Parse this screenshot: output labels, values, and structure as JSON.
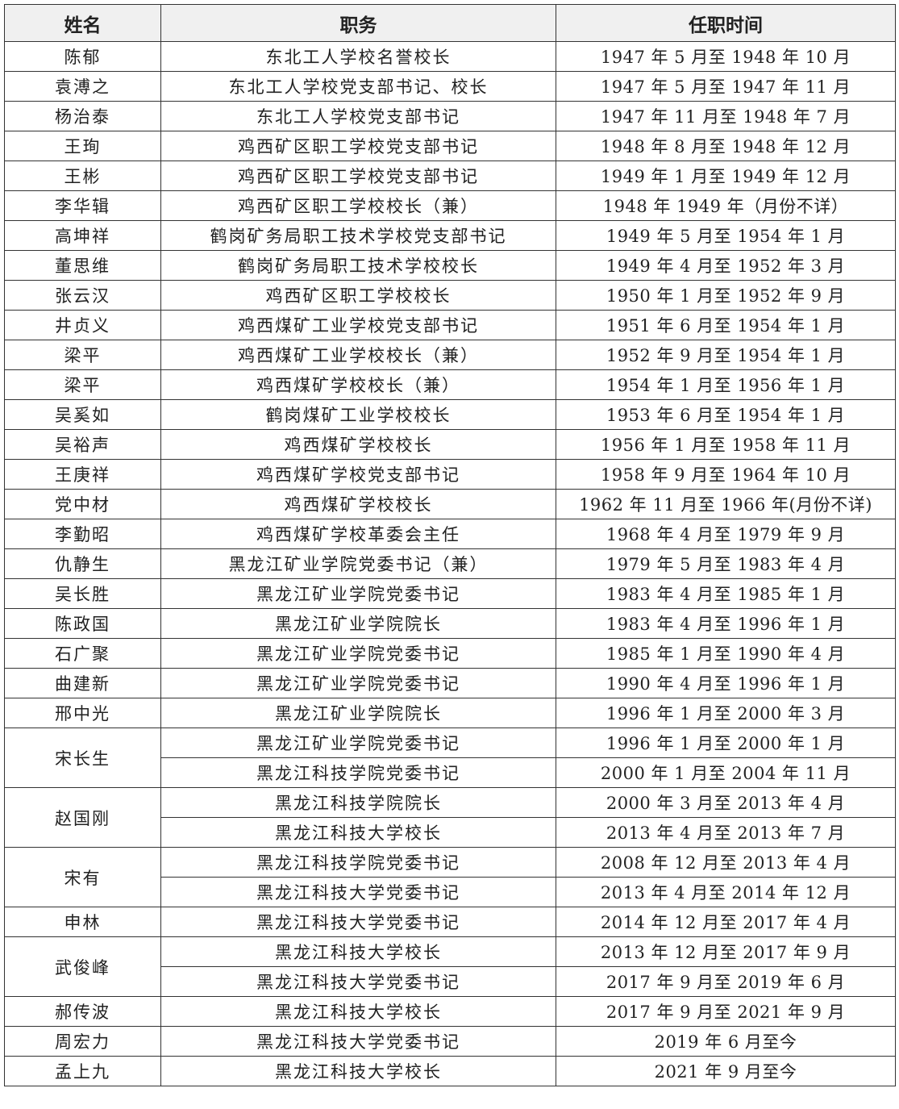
{
  "table": {
    "headers": [
      "姓名",
      "职务",
      "任职时间"
    ],
    "people": [
      {
        "name": "陈郁",
        "roles": [
          {
            "position": "东北工人学校名誉校长",
            "term": "1947 年 5 月至 1948 年 10 月"
          }
        ]
      },
      {
        "name": "袁溥之",
        "roles": [
          {
            "position": "东北工人学校党支部书记、校长",
            "term": "1947 年 5 月至 1947 年 11 月"
          }
        ]
      },
      {
        "name": "杨治泰",
        "roles": [
          {
            "position": "东北工人学校党支部书记",
            "term": "1947 年 11 月至 1948 年 7 月"
          }
        ]
      },
      {
        "name": "王珣",
        "roles": [
          {
            "position": "鸡西矿区职工学校党支部书记",
            "term": "1948 年 8 月至 1948 年 12 月"
          }
        ]
      },
      {
        "name": "王彬",
        "roles": [
          {
            "position": "鸡西矿区职工学校党支部书记",
            "term": "1949 年 1 月至 1949 年 12 月"
          }
        ]
      },
      {
        "name": "李华辑",
        "roles": [
          {
            "position": "鸡西矿区职工学校校长（兼）",
            "term": "1948 年 1949 年（月份不详）"
          }
        ]
      },
      {
        "name": "高坤祥",
        "roles": [
          {
            "position": "鹤岗矿务局职工技术学校党支部书记",
            "term": "1949 年 5 月至 1954 年 1 月"
          }
        ]
      },
      {
        "name": "董思维",
        "roles": [
          {
            "position": "鹤岗矿务局职工技术学校校长",
            "term": "1949 年 4 月至 1952 年 3 月"
          }
        ]
      },
      {
        "name": "张云汉",
        "roles": [
          {
            "position": "鸡西矿区职工学校校长",
            "term": "1950 年 1 月至 1952 年 9 月"
          }
        ]
      },
      {
        "name": "井贞义",
        "roles": [
          {
            "position": "鸡西煤矿工业学校党支部书记",
            "term": "1951 年 6 月至 1954 年 1 月"
          }
        ]
      },
      {
        "name": "梁平",
        "roles": [
          {
            "position": "鸡西煤矿工业学校校长（兼）",
            "term": "1952 年 9 月至 1954 年 1 月"
          }
        ]
      },
      {
        "name": "梁平",
        "roles": [
          {
            "position": "鸡西煤矿学校校长（兼）",
            "term": "1954 年 1 月至 1956 年 1 月"
          }
        ]
      },
      {
        "name": "吴奚如",
        "roles": [
          {
            "position": "鹤岗煤矿工业学校校长",
            "term": "1953 年 6 月至 1954 年 1 月"
          }
        ]
      },
      {
        "name": "吴裕声",
        "roles": [
          {
            "position": "鸡西煤矿学校校长",
            "term": "1956 年 1 月至 1958 年 11 月"
          }
        ]
      },
      {
        "name": "王庚祥",
        "roles": [
          {
            "position": "鸡西煤矿学校党支部书记",
            "term": "1958 年 9 月至 1964 年 10 月"
          }
        ]
      },
      {
        "name": "党中材",
        "roles": [
          {
            "position": "鸡西煤矿学校校长",
            "term": "1962 年 11 月至 1966 年(月份不详)"
          }
        ]
      },
      {
        "name": "李勤昭",
        "roles": [
          {
            "position": "鸡西煤矿学校革委会主任",
            "term": "1968 年 4 月至 1979 年 9 月"
          }
        ]
      },
      {
        "name": "仇静生",
        "roles": [
          {
            "position": "黑龙江矿业学院党委书记（兼）",
            "term": "1979 年 5 月至 1983 年 4 月"
          }
        ]
      },
      {
        "name": "吴长胜",
        "roles": [
          {
            "position": "黑龙江矿业学院党委书记",
            "term": "1983 年 4 月至 1985 年 1 月"
          }
        ]
      },
      {
        "name": "陈政国",
        "roles": [
          {
            "position": "黑龙江矿业学院院长",
            "term": "1983 年 4 月至 1996 年 1 月"
          }
        ]
      },
      {
        "name": "石广聚",
        "roles": [
          {
            "position": "黑龙江矿业学院党委书记",
            "term": "1985 年 1 月至 1990 年 4 月"
          }
        ]
      },
      {
        "name": "曲建新",
        "roles": [
          {
            "position": "黑龙江矿业学院党委书记",
            "term": "1990 年 4 月至 1996 年 1 月"
          }
        ]
      },
      {
        "name": "邢中光",
        "roles": [
          {
            "position": "黑龙江矿业学院院长",
            "term": "1996 年 1 月至 2000 年 3 月"
          }
        ]
      },
      {
        "name": "宋长生",
        "roles": [
          {
            "position": "黑龙江矿业学院党委书记",
            "term": "1996 年 1 月至 2000 年 1 月"
          },
          {
            "position": "黑龙江科技学院党委书记",
            "term": "2000 年 1 月至 2004 年 11 月"
          }
        ]
      },
      {
        "name": "赵国刚",
        "roles": [
          {
            "position": "黑龙江科技学院院长",
            "term": "2000 年 3 月至 2013 年 4 月"
          },
          {
            "position": "黑龙江科技大学校长",
            "term": "2013 年 4 月至 2013 年 7 月"
          }
        ]
      },
      {
        "name": "宋有",
        "roles": [
          {
            "position": "黑龙江科技学院党委书记",
            "term": "2008 年 12 月至 2013 年 4 月"
          },
          {
            "position": "黑龙江科技大学党委书记",
            "term": "2013 年 4 月至 2014 年 12 月"
          }
        ]
      },
      {
        "name": "申林",
        "roles": [
          {
            "position": "黑龙江科技大学党委书记",
            "term": "2014 年 12 月至 2017 年 4 月"
          }
        ]
      },
      {
        "name": "武俊峰",
        "roles": [
          {
            "position": "黑龙江科技大学校长",
            "term": "2013 年 12 月至 2017 年 9 月"
          },
          {
            "position": "黑龙江科技大学党委书记",
            "term": "2017 年 9 月至 2019 年 6 月"
          }
        ]
      },
      {
        "name": "郝传波",
        "roles": [
          {
            "position": "黑龙江科技大学校长",
            "term": "2017 年 9 月至 2021 年 9 月"
          }
        ]
      },
      {
        "name": "周宏力",
        "roles": [
          {
            "position": "黑龙江科技大学党委书记",
            "term": "2019 年 6 月至今"
          }
        ]
      },
      {
        "name": "孟上九",
        "roles": [
          {
            "position": "黑龙江科技大学校长",
            "term": "2021 年 9 月至今"
          }
        ]
      }
    ]
  }
}
